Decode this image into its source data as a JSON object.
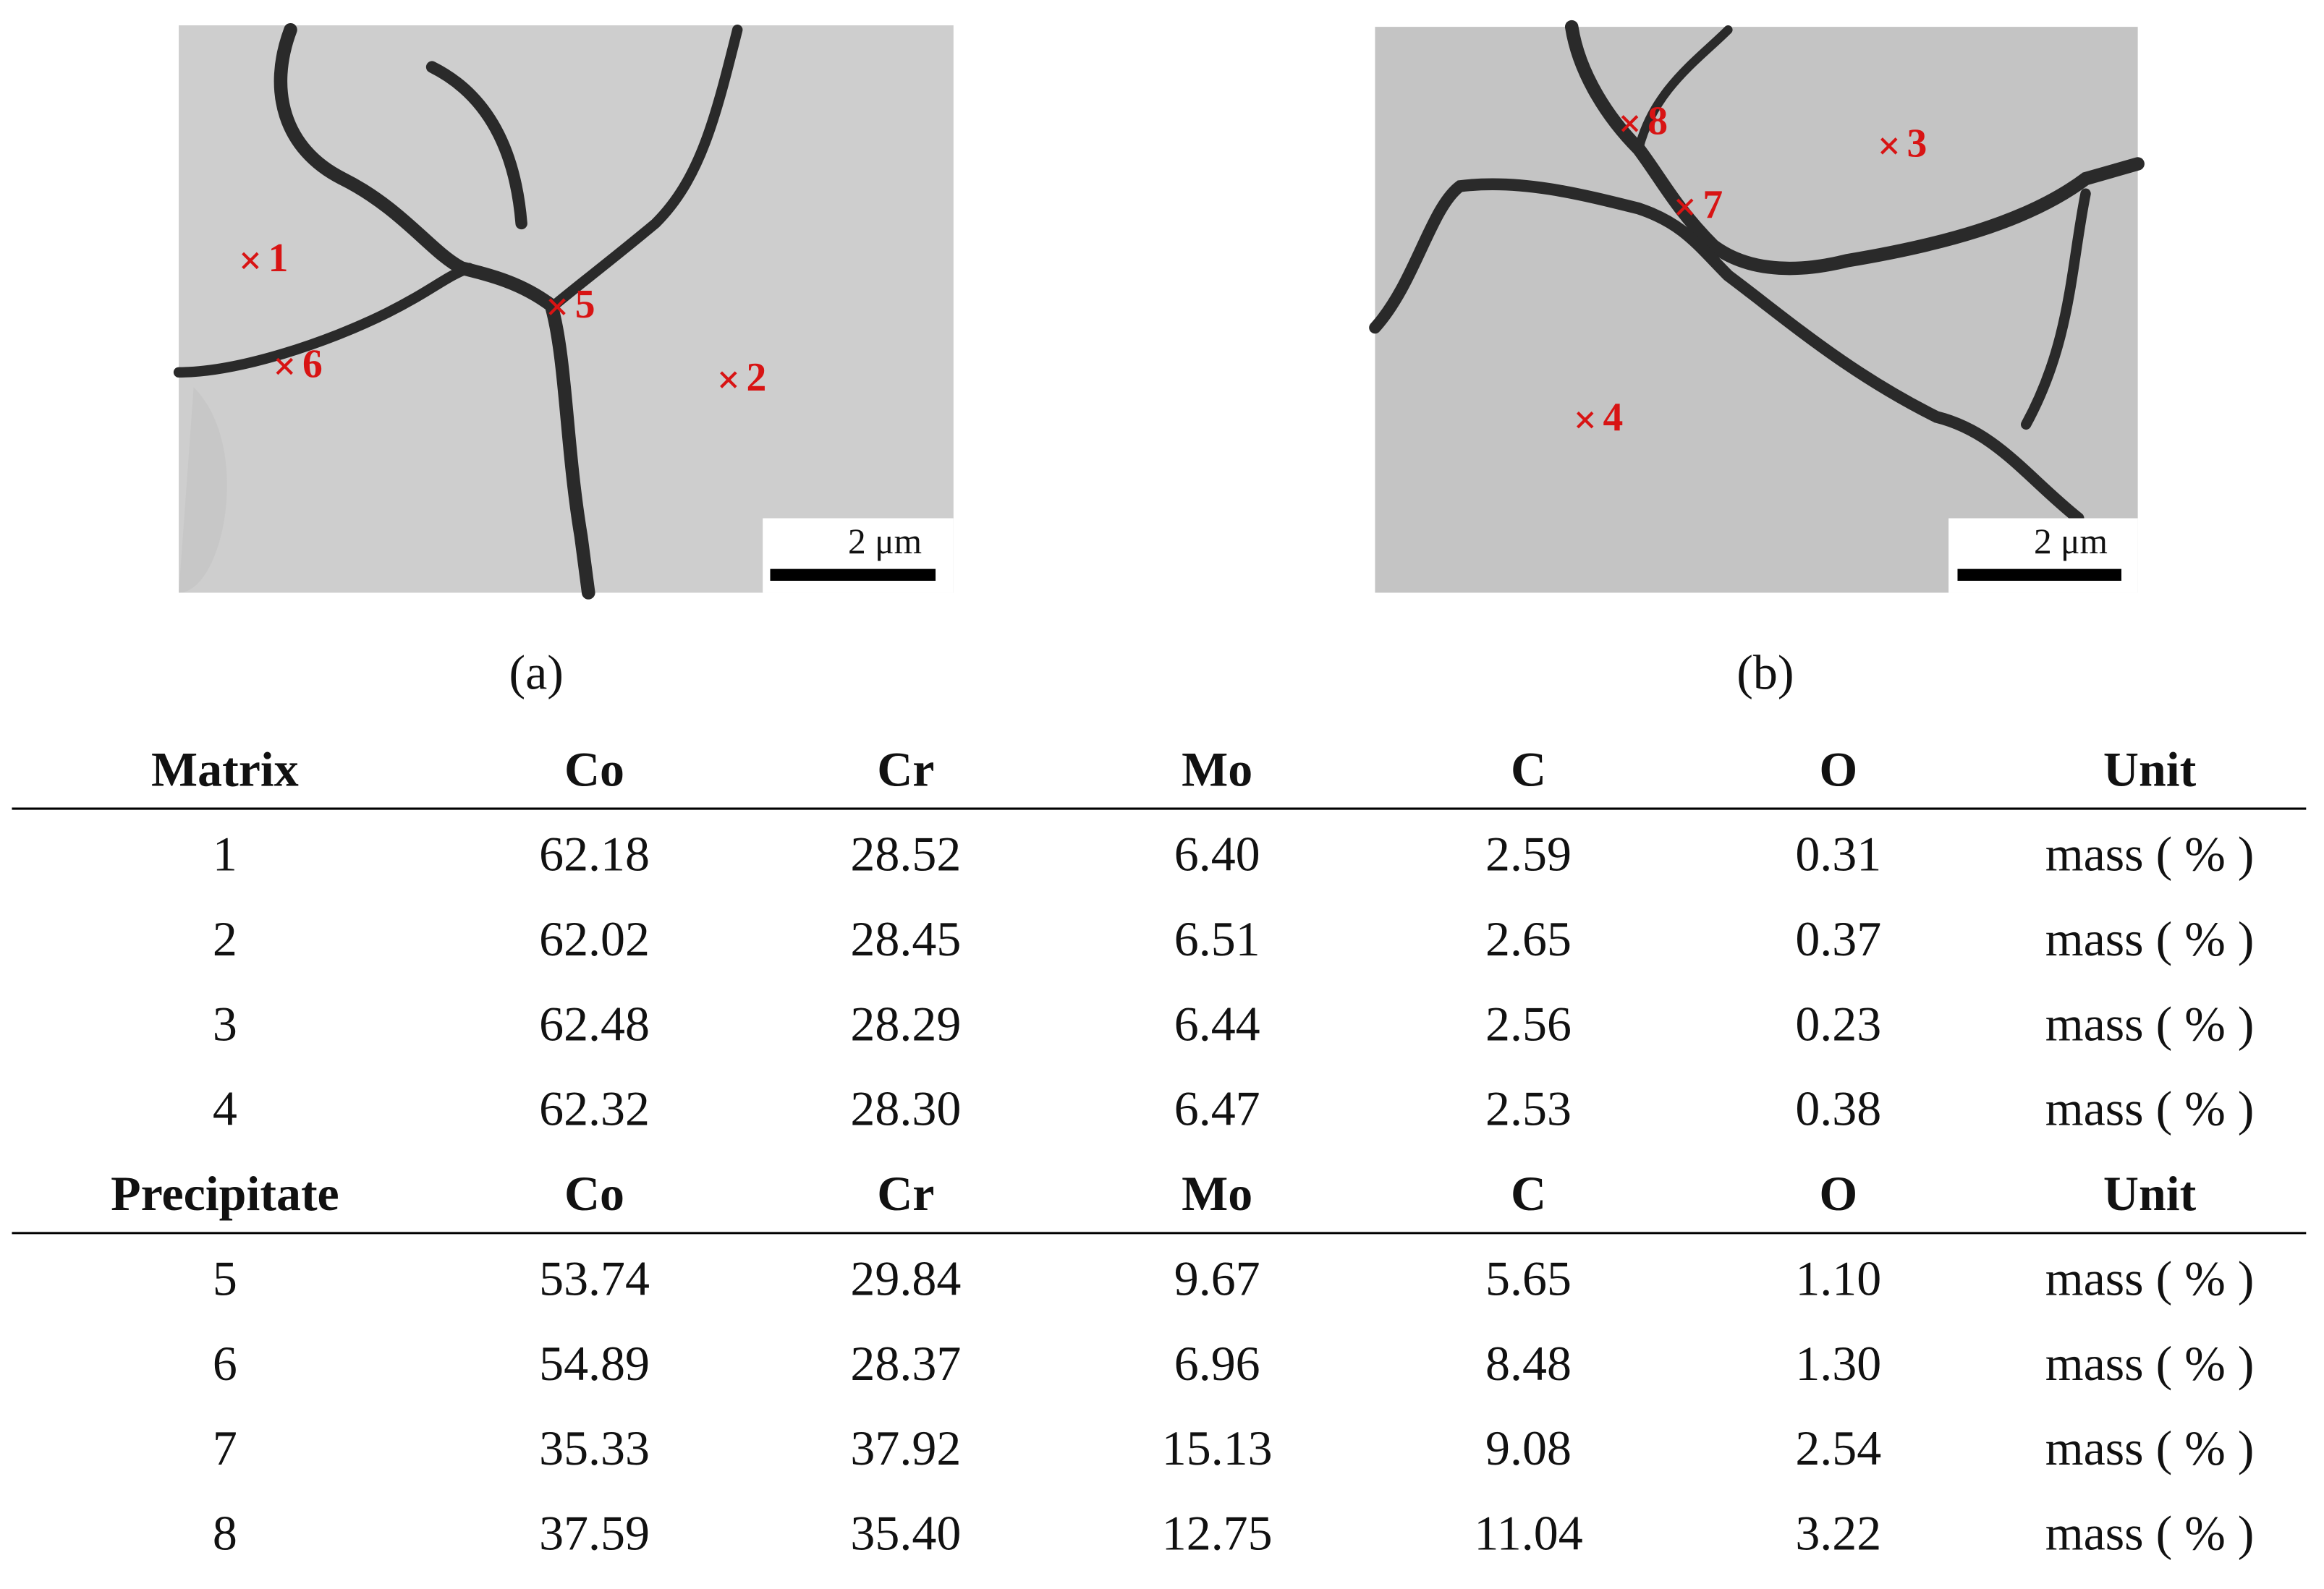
{
  "panels": [
    {
      "label": "(a)",
      "scale_bar": "2 μm",
      "markers": [
        {
          "label": "1"
        },
        {
          "label": "2"
        },
        {
          "label": "5"
        },
        {
          "label": "6"
        }
      ]
    },
    {
      "label": "(b)",
      "scale_bar": "2 μm",
      "markers": [
        {
          "label": "8"
        },
        {
          "label": "3"
        },
        {
          "label": "7"
        },
        {
          "label": "4"
        }
      ]
    }
  ],
  "table": {
    "sections": [
      {
        "header": [
          "Matrix",
          "Co",
          "Cr",
          "Mo",
          "C",
          "O",
          "Unit"
        ],
        "rows": [
          [
            "1",
            "62.18",
            "28.52",
            "6.40",
            "2.59",
            "0.31",
            "mass ( % )"
          ],
          [
            "2",
            "62.02",
            "28.45",
            "6.51",
            "2.65",
            "0.37",
            "mass ( % )"
          ],
          [
            "3",
            "62.48",
            "28.29",
            "6.44",
            "2.56",
            "0.23",
            "mass ( % )"
          ],
          [
            "4",
            "62.32",
            "28.30",
            "6.47",
            "2.53",
            "0.38",
            "mass ( % )"
          ]
        ]
      },
      {
        "header": [
          "Precipitate",
          "Co",
          "Cr",
          "Mo",
          "C",
          "O",
          "Unit"
        ],
        "rows": [
          [
            "5",
            "53.74",
            "29.84",
            "9.67",
            "5.65",
            "1.10",
            "mass ( % )"
          ],
          [
            "6",
            "54.89",
            "28.37",
            "6.96",
            "8.48",
            "1.30",
            "mass ( % )"
          ],
          [
            "7",
            "35.33",
            "37.92",
            "15.13",
            "9.08",
            "2.54",
            "mass ( % )"
          ],
          [
            "8",
            "37.59",
            "35.40",
            "12.75",
            "11.04",
            "3.22",
            "mass ( % )"
          ]
        ]
      }
    ]
  }
}
